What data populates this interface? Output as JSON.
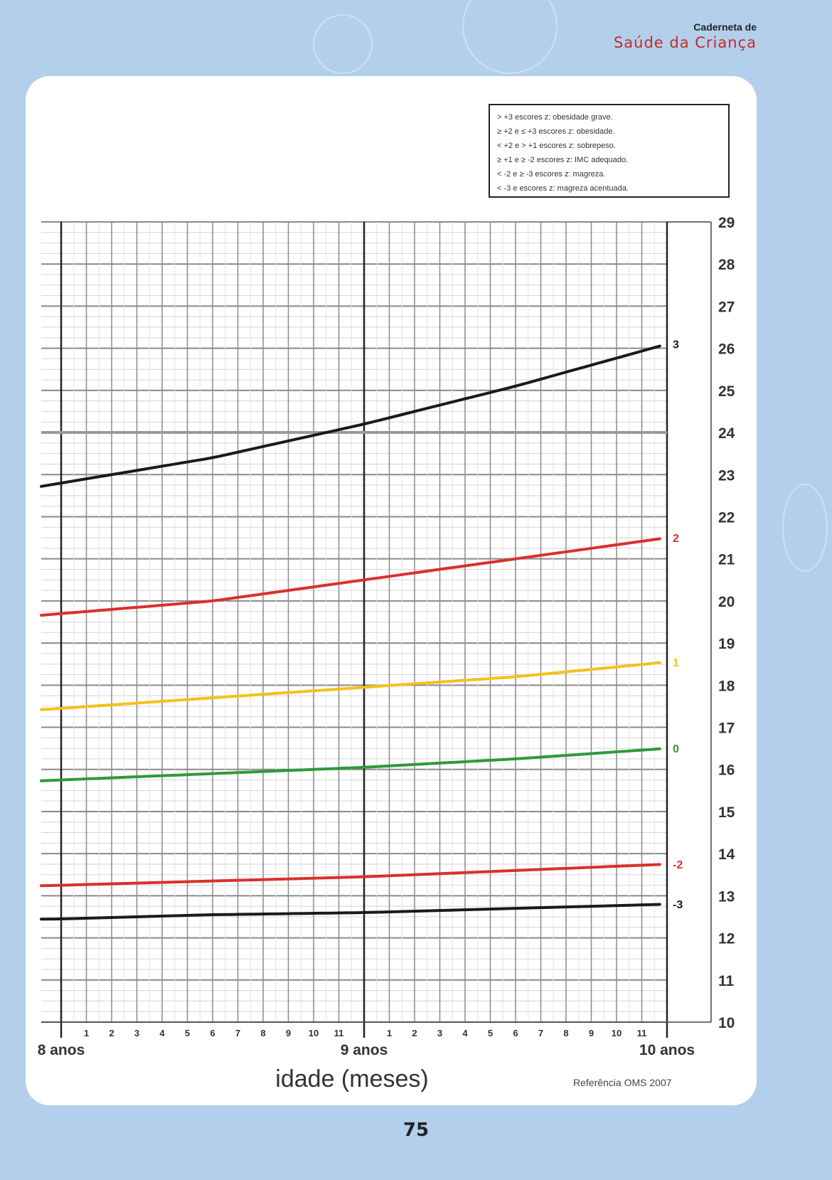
{
  "header": {
    "brand_top": "Caderneta de",
    "brand_main": "Saúde da Criança"
  },
  "legend": {
    "lines": [
      "> +3 escores z: obesidade grave.",
      "≥ +2 e ≤ +3 escores z: obesidade.",
      "< +2 e > +1 escores z: sobrepeso.",
      "≥ +1 e ≥ -2 escores z: IMC adequado.",
      "< -2 e ≥ -3 escores z: magreza.",
      "< -3 e escores z: magreza acentuada."
    ]
  },
  "footer": {
    "xaxis_title": "idade (meses)",
    "reference": "Referência OMS 2007",
    "page_number": "75"
  },
  "colors": {
    "background": "#b3cfec",
    "black_curve": "#1a1a1a",
    "red_curve": "#d8312c",
    "yellow_curve": "#f2c21a",
    "green_curve": "#2e9a3a"
  },
  "chart_data": {
    "type": "line",
    "xlabel": "idade (meses)",
    "ylabel": "",
    "x_unit": "months of age",
    "xlim": [
      7,
      120
    ],
    "ylim": [
      10,
      29
    ],
    "yticks": [
      10,
      11,
      12,
      13,
      14,
      15,
      16,
      17,
      18,
      19,
      20,
      21,
      22,
      23,
      24,
      25,
      26,
      27,
      28,
      29
    ],
    "year_labels": [
      {
        "month": 96,
        "label": "8 anos"
      },
      {
        "month": 108,
        "label": "9 anos"
      },
      {
        "month": 120,
        "label": "10 anos"
      }
    ],
    "month_ticks": [
      {
        "month": 91,
        "label": "7"
      },
      {
        "month": 92,
        "label": "8"
      },
      {
        "month": 93,
        "label": "9"
      },
      {
        "month": 94,
        "label": "10"
      },
      {
        "month": 95,
        "label": "11"
      },
      {
        "month": 97,
        "label": "1"
      },
      {
        "month": 98,
        "label": "2"
      },
      {
        "month": 99,
        "label": "3"
      },
      {
        "month": 100,
        "label": "4"
      },
      {
        "month": 101,
        "label": "5"
      },
      {
        "month": 102,
        "label": "6"
      },
      {
        "month": 103,
        "label": "7"
      },
      {
        "month": 104,
        "label": "8"
      },
      {
        "month": 105,
        "label": "9"
      },
      {
        "month": 106,
        "label": "10"
      },
      {
        "month": 107,
        "label": "11"
      },
      {
        "month": 109,
        "label": "1"
      },
      {
        "month": 110,
        "label": "2"
      },
      {
        "month": 111,
        "label": "3"
      },
      {
        "month": 112,
        "label": "4"
      },
      {
        "month": 113,
        "label": "5"
      },
      {
        "month": 114,
        "label": "6"
      },
      {
        "month": 115,
        "label": "7"
      },
      {
        "month": 116,
        "label": "8"
      },
      {
        "month": 117,
        "label": "9"
      },
      {
        "month": 118,
        "label": "10"
      },
      {
        "month": 119,
        "label": "11"
      }
    ],
    "x": [
      90,
      96,
      102,
      108,
      114,
      120
    ],
    "series": [
      {
        "name": "3",
        "color": "#1a1a1a",
        "values": [
          22.2,
          22.8,
          23.4,
          24.2,
          25.1,
          26.1
        ]
      },
      {
        "name": "2",
        "color": "#d8312c",
        "values": [
          19.4,
          19.7,
          20.0,
          20.5,
          21.0,
          21.5
        ]
      },
      {
        "name": "1",
        "color": "#f2c21a",
        "values": [
          17.2,
          17.45,
          17.7,
          17.95,
          18.2,
          18.55
        ]
      },
      {
        "name": "0",
        "color": "#2e9a3a",
        "values": [
          15.6,
          15.75,
          15.9,
          16.05,
          16.25,
          16.5
        ]
      },
      {
        "name": "-2",
        "color": "#d8312c",
        "values": [
          13.15,
          13.25,
          13.35,
          13.45,
          13.6,
          13.75
        ]
      },
      {
        "name": "-3",
        "color": "#1a1a1a",
        "values": [
          12.4,
          12.45,
          12.55,
          12.6,
          12.7,
          12.8
        ]
      }
    ]
  }
}
